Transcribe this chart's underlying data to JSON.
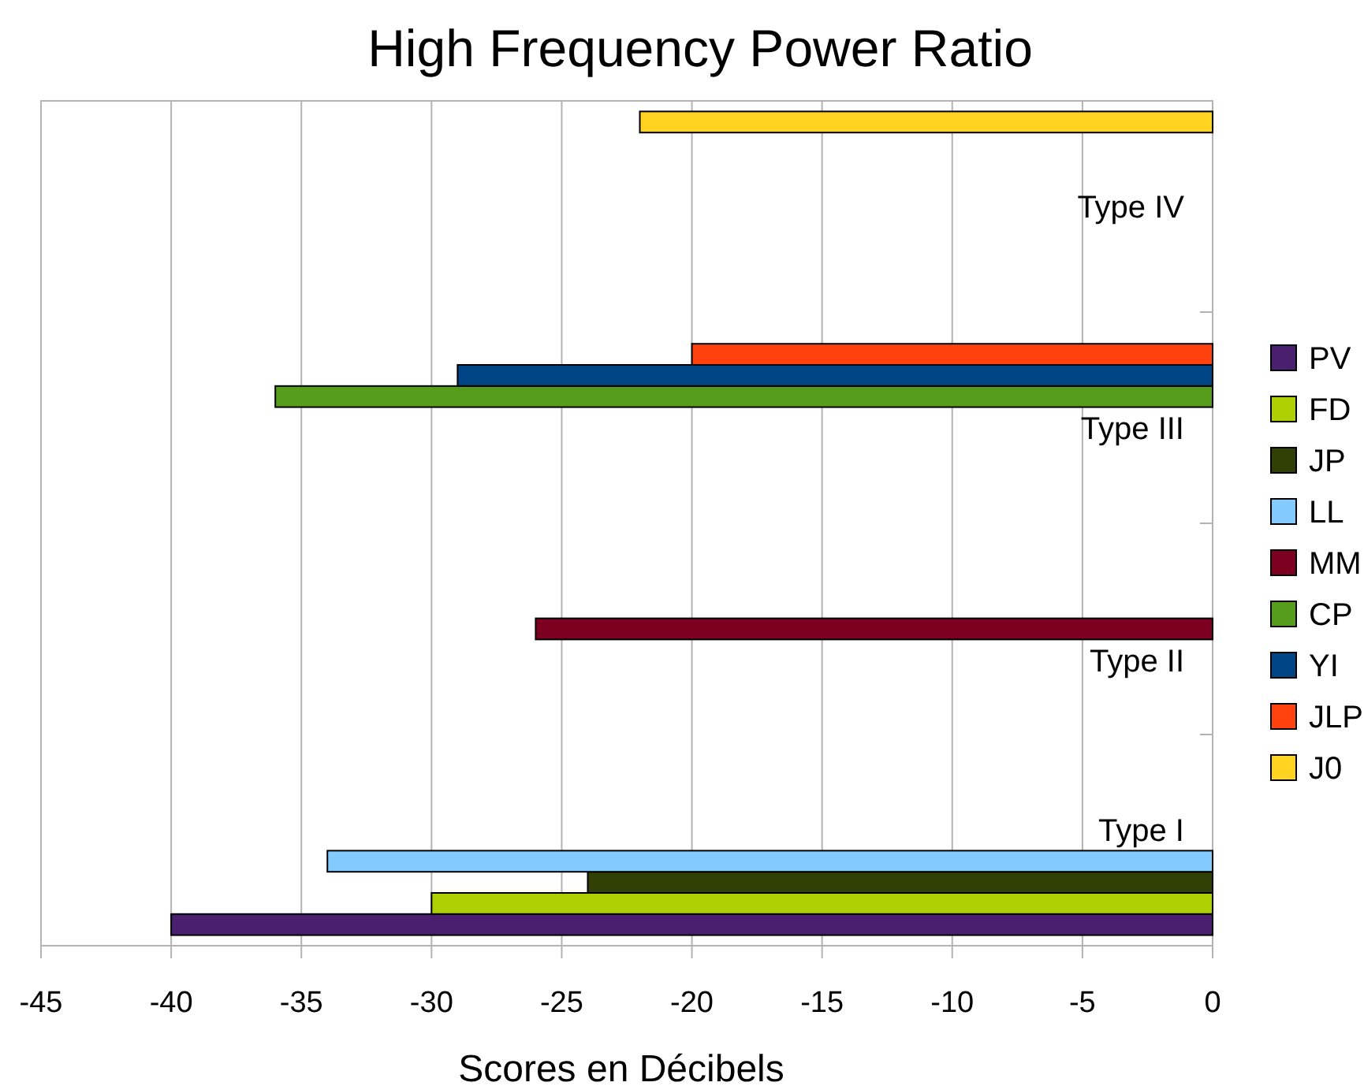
{
  "chart_data": {
    "type": "bar",
    "orientation": "horizontal",
    "title": "High Frequency Power Ratio",
    "xlabel": "Scores en Décibels",
    "categories": [
      "Type IV",
      "Type III",
      "Type II",
      "Type I"
    ],
    "series": [
      {
        "name": "PV",
        "color": "#4b1f6f",
        "values": [
          null,
          null,
          null,
          -40
        ]
      },
      {
        "name": "FD",
        "color": "#aecf00",
        "values": [
          null,
          null,
          null,
          -30
        ]
      },
      {
        "name": "JP",
        "color": "#314004",
        "values": [
          null,
          null,
          null,
          -24
        ]
      },
      {
        "name": "LL",
        "color": "#83caff",
        "values": [
          null,
          null,
          null,
          -34
        ]
      },
      {
        "name": "MM",
        "color": "#7e0021",
        "values": [
          null,
          null,
          -26,
          null
        ]
      },
      {
        "name": "CP",
        "color": "#579d1c",
        "values": [
          null,
          -36,
          null,
          null
        ]
      },
      {
        "name": "YI",
        "color": "#004586",
        "values": [
          null,
          -29,
          null,
          null
        ]
      },
      {
        "name": "JLP",
        "color": "#ff420e",
        "values": [
          null,
          -20,
          null,
          null
        ]
      },
      {
        "name": "J0",
        "color": "#ffd320",
        "values": [
          -22,
          null,
          null,
          null
        ]
      }
    ],
    "xlim": [
      -45,
      0
    ],
    "xticks": [
      -45,
      -40,
      -35,
      -30,
      -25,
      -20,
      -15,
      -10,
      -5,
      0
    ],
    "grid": "x",
    "legend": "right"
  }
}
